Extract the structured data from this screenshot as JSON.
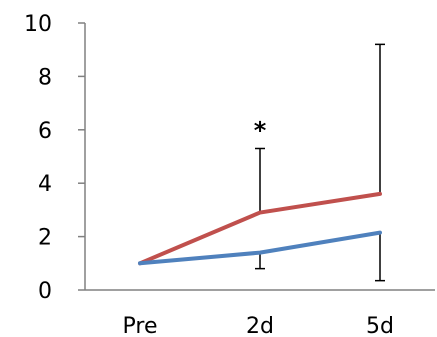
{
  "chart_data": {
    "type": "line",
    "title": "",
    "xlabel": "",
    "ylabel": "",
    "categories": [
      "Pre",
      "2d",
      "5d"
    ],
    "ylim": [
      0,
      10
    ],
    "yticks": [
      "0",
      "2",
      "4",
      "6",
      "8",
      "10"
    ],
    "grid": false,
    "legend": "none",
    "series": [
      {
        "color": "#C0504D",
        "values": [
          1.0,
          2.9,
          3.6
        ],
        "error_high": [
          null,
          5.3,
          9.2
        ]
      },
      {
        "color": "#4F81BD",
        "values": [
          1.0,
          1.4,
          2.15
        ],
        "error_low": [
          null,
          0.8,
          0.35
        ]
      }
    ],
    "annotations": [
      {
        "text": "*",
        "category": "2d",
        "y": 6.2
      }
    ]
  }
}
